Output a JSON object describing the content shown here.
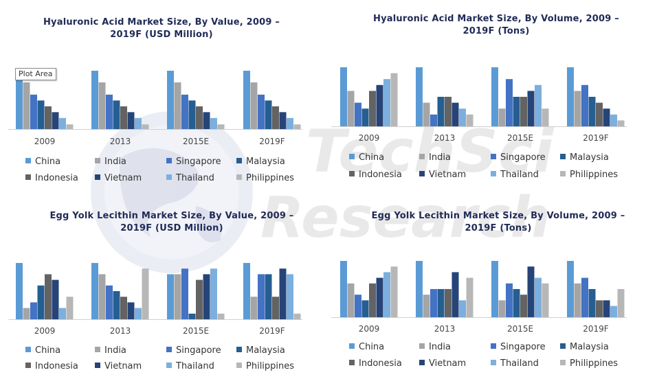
{
  "watermark": {
    "line1": "TechSci",
    "line2": "Research"
  },
  "tooltip": "Plot Area",
  "colors": {
    "China": "#5b9bd5",
    "India": "#a5a5a5",
    "Singapore": "#4472c4",
    "Malaysia": "#255e91",
    "Indonesia": "#636363",
    "Vietnam": "#264478",
    "Thailand": "#7cafdd",
    "Philippines": "#b7b7b7"
  },
  "chart_data": [
    {
      "type": "bar",
      "title": "Hyaluronic Acid Market Size, By Value, 2009 – 2019F (USD Million)",
      "categories": [
        "2009",
        "2013",
        "2015E",
        "2019F"
      ],
      "series": [
        {
          "name": "China",
          "values": [
            100,
            100,
            100,
            100
          ]
        },
        {
          "name": "India",
          "values": [
            80,
            80,
            80,
            80
          ]
        },
        {
          "name": "Singapore",
          "values": [
            59,
            59,
            59,
            59
          ]
        },
        {
          "name": "Malaysia",
          "values": [
            49,
            49,
            49,
            49
          ]
        },
        {
          "name": "Indonesia",
          "values": [
            39,
            39,
            39,
            39
          ]
        },
        {
          "name": "Vietnam",
          "values": [
            29,
            29,
            29,
            29
          ]
        },
        {
          "name": "Thailand",
          "values": [
            19,
            19,
            19,
            19
          ]
        },
        {
          "name": "Philippines",
          "values": [
            8,
            8,
            8,
            8
          ]
        }
      ],
      "ylim": [
        0,
        100
      ]
    },
    {
      "type": "bar",
      "title": "Hyaluronic Acid Market Size, By Volume, 2009 – 2019F (Tons)",
      "categories": [
        "2009",
        "2013",
        "2015E",
        "2019F"
      ],
      "series": [
        {
          "name": "China",
          "values": [
            100,
            100,
            100,
            100
          ]
        },
        {
          "name": "India",
          "values": [
            60,
            40,
            30,
            60
          ]
        },
        {
          "name": "Singapore",
          "values": [
            40,
            20,
            80,
            70
          ]
        },
        {
          "name": "Malaysia",
          "values": [
            30,
            50,
            50,
            50
          ]
        },
        {
          "name": "Indonesia",
          "values": [
            60,
            50,
            50,
            40
          ]
        },
        {
          "name": "Vietnam",
          "values": [
            70,
            40,
            60,
            30
          ]
        },
        {
          "name": "Thailand",
          "values": [
            80,
            30,
            70,
            20
          ]
        },
        {
          "name": "Philippines",
          "values": [
            90,
            20,
            30,
            10
          ]
        }
      ],
      "ylim": [
        0,
        100
      ]
    },
    {
      "type": "bar",
      "title": "Egg Yolk Lecithin Market Size, By Value, 2009 – 2019F (USD Million)",
      "categories": [
        "2009",
        "2013",
        "2015E",
        "2019F"
      ],
      "series": [
        {
          "name": "China",
          "values": [
            100,
            100,
            80,
            100
          ]
        },
        {
          "name": "India",
          "values": [
            20,
            80,
            80,
            40
          ]
        },
        {
          "name": "Singapore",
          "values": [
            30,
            60,
            90,
            80
          ]
        },
        {
          "name": "Malaysia",
          "values": [
            60,
            50,
            10,
            80
          ]
        },
        {
          "name": "Indonesia",
          "values": [
            80,
            40,
            70,
            40
          ]
        },
        {
          "name": "Vietnam",
          "values": [
            70,
            30,
            80,
            90
          ]
        },
        {
          "name": "Thailand",
          "values": [
            20,
            20,
            90,
            80
          ]
        },
        {
          "name": "Philippines",
          "values": [
            40,
            90,
            10,
            10
          ]
        }
      ],
      "ylim": [
        0,
        100
      ]
    },
    {
      "type": "bar",
      "title": "Egg Yolk Lecithin  Market Size, By Volume, 2009 – 2019F (Tons)",
      "categories": [
        "2009",
        "2013",
        "2015E",
        "2019F"
      ],
      "series": [
        {
          "name": "China",
          "values": [
            100,
            100,
            100,
            100
          ]
        },
        {
          "name": "India",
          "values": [
            60,
            40,
            30,
            60
          ]
        },
        {
          "name": "Singapore",
          "values": [
            40,
            50,
            60,
            70
          ]
        },
        {
          "name": "Malaysia",
          "values": [
            30,
            50,
            50,
            50
          ]
        },
        {
          "name": "Indonesia",
          "values": [
            60,
            50,
            40,
            30
          ]
        },
        {
          "name": "Vietnam",
          "values": [
            70,
            80,
            90,
            30
          ]
        },
        {
          "name": "Thailand",
          "values": [
            80,
            30,
            70,
            20
          ]
        },
        {
          "name": "Philippines",
          "values": [
            90,
            70,
            60,
            50
          ]
        }
      ],
      "ylim": [
        0,
        100
      ]
    }
  ]
}
